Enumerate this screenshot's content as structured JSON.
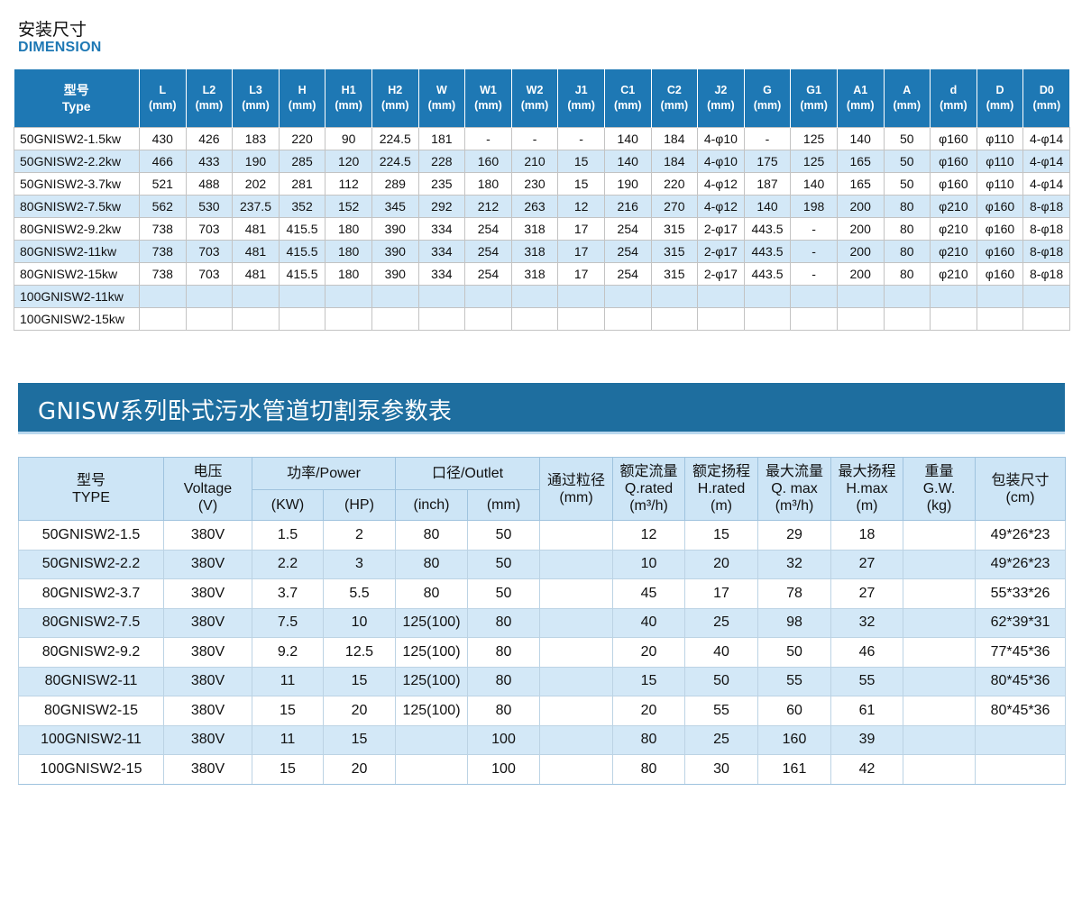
{
  "dimension_section": {
    "title_cn": "安装尺寸",
    "title_en": "DIMENSION"
  },
  "dimension_table": {
    "type_header": [
      "型号",
      "Type"
    ],
    "columns": [
      "L",
      "L2",
      "L3",
      "H",
      "H1",
      "H2",
      "W",
      "W1",
      "W2",
      "J1",
      "C1",
      "C2",
      "J2",
      "G",
      "G1",
      "A1",
      "A",
      "d",
      "D",
      "D0"
    ],
    "unit": "(mm)",
    "rows": [
      [
        "50GNISW2-1.5kw",
        "430",
        "426",
        "183",
        "220",
        "90",
        "224.5",
        "181",
        "-",
        "-",
        "-",
        "140",
        "184",
        "4-φ10",
        "-",
        "125",
        "140",
        "50",
        "φ160",
        "φ110",
        "4-φ14"
      ],
      [
        "50GNISW2-2.2kw",
        "466",
        "433",
        "190",
        "285",
        "120",
        "224.5",
        "228",
        "160",
        "210",
        "15",
        "140",
        "184",
        "4-φ10",
        "175",
        "125",
        "165",
        "50",
        "φ160",
        "φ110",
        "4-φ14"
      ],
      [
        "50GNISW2-3.7kw",
        "521",
        "488",
        "202",
        "281",
        "112",
        "289",
        "235",
        "180",
        "230",
        "15",
        "190",
        "220",
        "4-φ12",
        "187",
        "140",
        "165",
        "50",
        "φ160",
        "φ110",
        "4-φ14"
      ],
      [
        "80GNISW2-7.5kw",
        "562",
        "530",
        "237.5",
        "352",
        "152",
        "345",
        "292",
        "212",
        "263",
        "12",
        "216",
        "270",
        "4-φ12",
        "140",
        "198",
        "200",
        "80",
        "φ210",
        "φ160",
        "8-φ18"
      ],
      [
        "80GNISW2-9.2kw",
        "738",
        "703",
        "481",
        "415.5",
        "180",
        "390",
        "334",
        "254",
        "318",
        "17",
        "254",
        "315",
        "2-φ17",
        "443.5",
        "-",
        "200",
        "80",
        "φ210",
        "φ160",
        "8-φ18"
      ],
      [
        "80GNISW2-11kw",
        "738",
        "703",
        "481",
        "415.5",
        "180",
        "390",
        "334",
        "254",
        "318",
        "17",
        "254",
        "315",
        "2-φ17",
        "443.5",
        "-",
        "200",
        "80",
        "φ210",
        "φ160",
        "8-φ18"
      ],
      [
        "80GNISW2-15kw",
        "738",
        "703",
        "481",
        "415.5",
        "180",
        "390",
        "334",
        "254",
        "318",
        "17",
        "254",
        "315",
        "2-φ17",
        "443.5",
        "-",
        "200",
        "80",
        "φ210",
        "φ160",
        "8-φ18"
      ],
      [
        "100GNISW2-11kw",
        "",
        "",
        "",
        "",
        "",
        "",
        "",
        "",
        "",
        "",
        "",
        "",
        "",
        "",
        "",
        "",
        "",
        "",
        "",
        ""
      ],
      [
        "100GNISW2-15kw",
        "",
        "",
        "",
        "",
        "",
        "",
        "",
        "",
        "",
        "",
        "",
        "",
        "",
        "",
        "",
        "",
        "",
        "",
        "",
        ""
      ]
    ]
  },
  "banner": {
    "title": "GNISW系列卧式污水管道切割泵参数表"
  },
  "param_table": {
    "headers": {
      "type": [
        "型号",
        "TYPE"
      ],
      "voltage": [
        "电压",
        "Voltage",
        "(V)"
      ],
      "power": "功率/Power",
      "power_kw": "(KW)",
      "power_hp": "(HP)",
      "outlet": "口径/Outlet",
      "outlet_inch": "(inch)",
      "outlet_mm": "(mm)",
      "passage": [
        "通过粒径",
        "(mm)"
      ],
      "q_rated": [
        "额定流量",
        "Q.rated",
        "(m³/h)"
      ],
      "h_rated": [
        "额定扬程",
        "H.rated",
        "(m)"
      ],
      "q_max": [
        "最大流量",
        "Q. max",
        "(m³/h)"
      ],
      "h_max": [
        "最大扬程",
        "H.max",
        "(m)"
      ],
      "weight": [
        "重量",
        "G.W.",
        "(kg)"
      ],
      "package": [
        "包装尺寸",
        "(cm)"
      ]
    },
    "rows": [
      [
        "50GNISW2-1.5",
        "380V",
        "1.5",
        "2",
        "80",
        "50",
        "",
        "12",
        "15",
        "29",
        "18",
        "",
        "49*26*23"
      ],
      [
        "50GNISW2-2.2",
        "380V",
        "2.2",
        "3",
        "80",
        "50",
        "",
        "10",
        "20",
        "32",
        "27",
        "",
        "49*26*23"
      ],
      [
        "80GNISW2-3.7",
        "380V",
        "3.7",
        "5.5",
        "80",
        "50",
        "",
        "45",
        "17",
        "78",
        "27",
        "",
        "55*33*26"
      ],
      [
        "80GNISW2-7.5",
        "380V",
        "7.5",
        "10",
        "125(100)",
        "80",
        "",
        "40",
        "25",
        "98",
        "32",
        "",
        "62*39*31"
      ],
      [
        "80GNISW2-9.2",
        "380V",
        "9.2",
        "12.5",
        "125(100)",
        "80",
        "",
        "20",
        "40",
        "50",
        "46",
        "",
        "77*45*36"
      ],
      [
        "80GNISW2-11",
        "380V",
        "11",
        "15",
        "125(100)",
        "80",
        "",
        "15",
        "50",
        "55",
        "55",
        "",
        "80*45*36"
      ],
      [
        "80GNISW2-15",
        "380V",
        "15",
        "20",
        "125(100)",
        "80",
        "",
        "20",
        "55",
        "60",
        "61",
        "",
        "80*45*36"
      ],
      [
        "100GNISW2-11",
        "380V",
        "11",
        "15",
        "",
        "100",
        "",
        "80",
        "25",
        "160",
        "39",
        "",
        ""
      ],
      [
        "100GNISW2-15",
        "380V",
        "15",
        "20",
        "",
        "100",
        "",
        "80",
        "30",
        "161",
        "42",
        "",
        ""
      ]
    ]
  },
  "colors": {
    "header_blue": "#1e78b4",
    "banner_blue": "#1e6e9f",
    "row_alt": "#d3e8f7",
    "param_header": "#cde5f6"
  }
}
